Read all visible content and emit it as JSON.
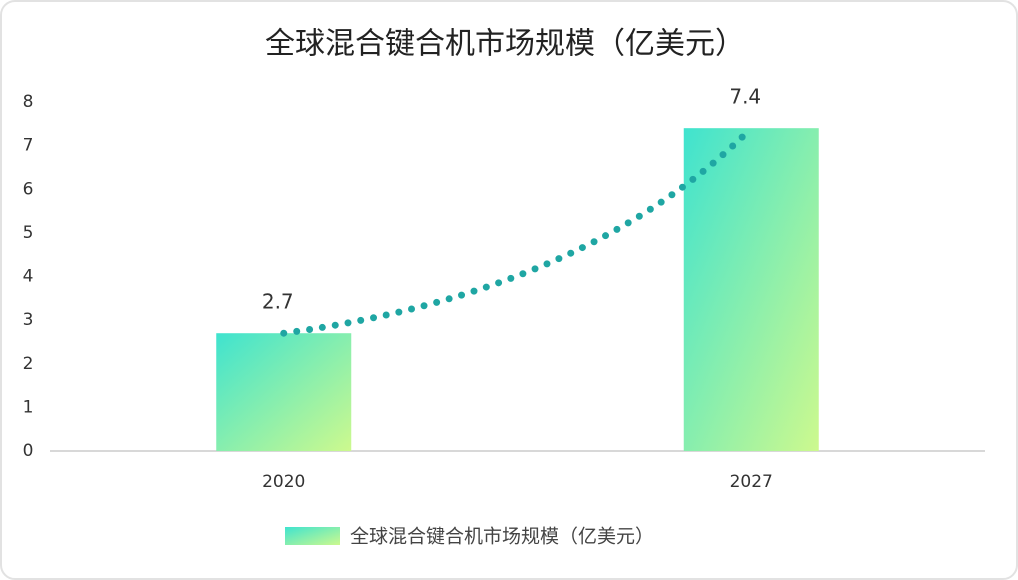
{
  "chart_data": {
    "type": "bar",
    "title": "全球混合键合机市场规模（亿美元）",
    "categories": [
      "2020",
      "2027"
    ],
    "series": [
      {
        "name": "全球混合键合机市场规模（亿美元）",
        "color": "#3fe3cf",
        "gradient_end": "#cdf98e",
        "values": [
          2.7,
          7.4
        ]
      }
    ],
    "ylim": [
      0,
      8
    ],
    "yticks": [
      0,
      1,
      2,
      3,
      4,
      5,
      6,
      7,
      8
    ],
    "grid": false,
    "data_labels": true,
    "trendline": true,
    "trendline_color": "#1fa6a3",
    "legend": "bottom"
  }
}
